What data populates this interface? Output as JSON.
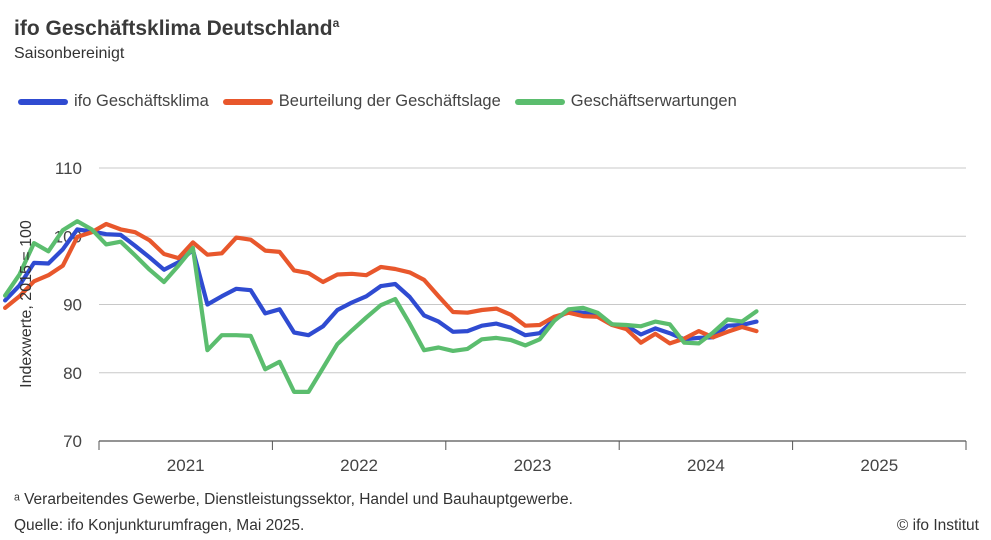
{
  "header": {
    "title": "ifo Geschäftsklima Deutschland",
    "title_sup": "a",
    "subtitle": "Saisonbereinigt"
  },
  "footer": {
    "footnote": "ᵃ Verarbeitendes Gewerbe, Dienstleistungssektor, Handel und Bauhauptgewerbe.",
    "source": "Quelle: ifo Konjunkturumfragen, Mai 2025.",
    "copyright": "© ifo Institut"
  },
  "chart_data": {
    "type": "line",
    "title": "ifo Geschäftsklima Deutschland",
    "subtitle": "Saisonbereinigt",
    "xlabel": "",
    "ylabel": "Indexwerte, 2015 = 100",
    "ylim": [
      70,
      110
    ],
    "yticks": [
      70,
      80,
      90,
      100,
      110
    ],
    "xlim": [
      2020.5,
      2025.5
    ],
    "xticks": [
      {
        "label": "2021",
        "center": 2021.0
      },
      {
        "label": "2022",
        "center": 2022.0
      },
      {
        "label": "2023",
        "center": 2023.0
      },
      {
        "label": "2024",
        "center": 2024.0
      },
      {
        "label": "2025",
        "center": 2025.0
      }
    ],
    "x_start": "2020-06",
    "x_step_months": 1,
    "grid": true,
    "legend_position": "top-left",
    "series": [
      {
        "name": "ifo Geschäftsklima",
        "color": "#2f4bd1",
        "values": [
          90.6,
          92.8,
          96.1,
          96.0,
          98.1,
          101.0,
          100.7,
          100.3,
          100.2,
          98.6,
          96.9,
          95.1,
          96.2,
          98.0,
          90.0,
          91.2,
          92.3,
          92.1,
          88.7,
          89.3,
          85.9,
          85.5,
          86.8,
          89.2,
          90.3,
          91.2,
          92.7,
          93.0,
          91.1,
          88.4,
          87.5,
          86.0,
          86.1,
          86.9,
          87.2,
          86.6,
          85.5,
          85.8,
          87.8,
          89.0,
          88.8,
          88.5,
          87.1,
          86.9,
          85.6,
          86.5,
          85.8,
          84.9,
          85.1,
          85.2,
          86.9,
          87.0,
          87.5
        ]
      },
      {
        "name": "Beurteilung der Geschäftslage",
        "color": "#e8572c",
        "values": [
          89.5,
          91.2,
          93.4,
          94.3,
          95.7,
          99.9,
          100.6,
          101.8,
          101.0,
          100.6,
          99.4,
          97.4,
          96.8,
          99.1,
          97.3,
          97.5,
          99.8,
          99.5,
          97.9,
          97.7,
          95.0,
          94.6,
          93.3,
          94.4,
          94.5,
          94.3,
          95.5,
          95.2,
          94.7,
          93.6,
          91.2,
          88.9,
          88.8,
          89.2,
          89.4,
          88.5,
          86.9,
          87.0,
          88.2,
          88.8,
          88.3,
          88.2,
          87.0,
          86.4,
          84.4,
          85.7,
          84.3,
          85.0,
          86.1,
          85.2,
          86.0,
          86.7,
          86.1
        ]
      },
      {
        "name": "Geschäftserwartungen",
        "color": "#5bbd6e",
        "values": [
          91.3,
          94.4,
          99.0,
          97.8,
          100.9,
          102.2,
          101.0,
          98.8,
          99.2,
          97.2,
          95.1,
          93.3,
          95.7,
          98.3,
          83.3,
          85.5,
          85.5,
          85.4,
          80.5,
          81.6,
          77.2,
          77.2,
          80.7,
          84.2,
          86.2,
          88.1,
          89.9,
          90.8,
          87.2,
          83.3,
          83.7,
          83.2,
          83.5,
          84.9,
          85.1,
          84.8,
          84.0,
          84.9,
          87.6,
          89.3,
          89.5,
          88.8,
          87.1,
          87.0,
          86.8,
          87.5,
          87.1,
          84.4,
          84.3,
          85.9,
          87.8,
          87.5,
          89.0
        ]
      }
    ]
  }
}
